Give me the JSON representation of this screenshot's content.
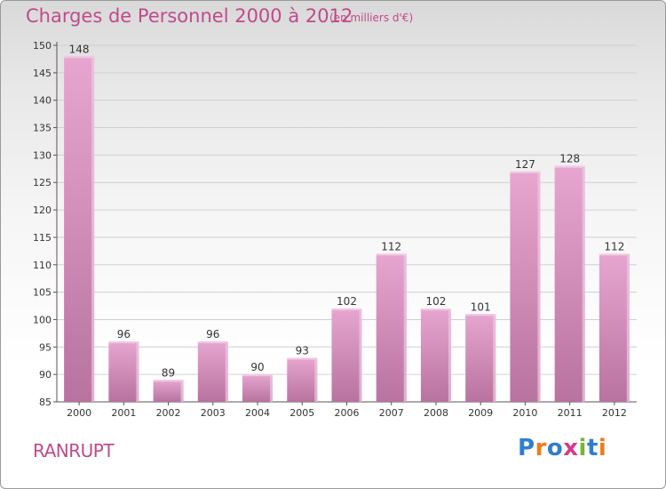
{
  "header": {
    "title": "Charges de Personnel 2000 à 2012",
    "subtitle": "(en milliers d'€)"
  },
  "commune": "RANRUPT",
  "logo": {
    "text": "Proxiti",
    "letter_colors": [
      "#2f7fd0",
      "#f07c1c",
      "#2f7fd0",
      "#d83a8a",
      "#73b82f",
      "#2f7fd0",
      "#f07c1c"
    ]
  },
  "colors": {
    "bar": "#d98bbf",
    "bar_light": "#e6a9cf",
    "bar_dark": "#b86fa0",
    "axis_text": "#333333",
    "grid": "#d0d0d0",
    "title": "#c04a8a"
  },
  "chart_data": {
    "type": "bar",
    "categories": [
      "2000",
      "2001",
      "2002",
      "2003",
      "2004",
      "2005",
      "2006",
      "2007",
      "2008",
      "2009",
      "2010",
      "2011",
      "2012"
    ],
    "values": [
      148,
      96,
      89,
      96,
      90,
      93,
      102,
      112,
      102,
      101,
      127,
      128,
      112
    ],
    "data_labels": [
      "148",
      "96",
      "89",
      "96",
      "90",
      "93",
      "102",
      "112",
      "102",
      "101",
      "127",
      "128",
      "112"
    ],
    "title": "Charges de Personnel 2000 à 2012",
    "subtitle": "(en milliers d'€)",
    "ylim": [
      85,
      150
    ],
    "yticks": [
      85,
      90,
      95,
      100,
      105,
      110,
      115,
      120,
      125,
      130,
      135,
      140,
      145,
      150
    ],
    "ytick_labels": [
      "85",
      "90",
      "95",
      "100",
      "105",
      "110",
      "115",
      "120",
      "125",
      "130",
      "135",
      "140",
      "145",
      "150"
    ],
    "grid": true
  }
}
